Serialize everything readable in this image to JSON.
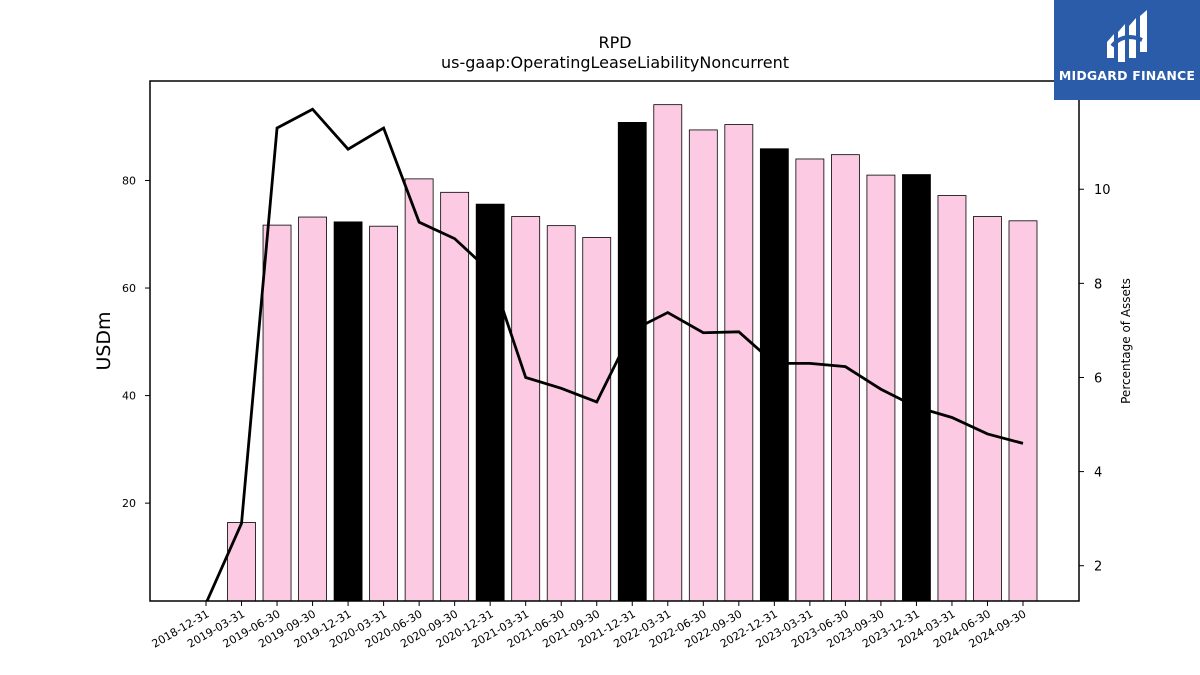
{
  "logo": {
    "text": "MIDGARD FINANCE",
    "background": "#2a5caa"
  },
  "chart_data": {
    "type": "bar",
    "title": "RPD",
    "subtitle": "us-gaap:OperatingLeaseLiabilityNoncurrent",
    "ylabel": "USDm",
    "y2label": "Percentage of Assets",
    "ylim": [
      1.8,
      98.5
    ],
    "y2lim": [
      1.25,
      12.3
    ],
    "yticks": [
      20,
      40,
      60,
      80
    ],
    "y2ticks": [
      2,
      4,
      6,
      8,
      10
    ],
    "colors": {
      "quarter_bar": "#fccbe3",
      "year_end_bar": "#000000",
      "line": "#000000"
    },
    "categories": [
      "2018-12-31",
      "2019-03-31",
      "2019-06-30",
      "2019-09-30",
      "2019-12-31",
      "2020-03-31",
      "2020-06-30",
      "2020-09-30",
      "2020-12-31",
      "2021-03-31",
      "2021-06-30",
      "2021-09-30",
      "2021-12-31",
      "2022-03-31",
      "2022-06-30",
      "2022-09-30",
      "2022-12-31",
      "2023-03-31",
      "2023-06-30",
      "2023-09-30",
      "2023-12-31",
      "2024-03-31",
      "2024-06-30",
      "2024-09-30"
    ],
    "series": [
      {
        "kind": "bar",
        "values": [
          null,
          16.4,
          71.7,
          73.2,
          72.3,
          71.5,
          80.3,
          77.8,
          75.6,
          73.3,
          71.6,
          69.4,
          90.8,
          94.1,
          89.4,
          90.4,
          85.9,
          84.0,
          84.8,
          81.0,
          81.1,
          77.2,
          73.3,
          72.5
        ],
        "year_end": [
          true,
          false,
          false,
          false,
          true,
          false,
          false,
          false,
          true,
          false,
          false,
          false,
          true,
          false,
          false,
          false,
          true,
          false,
          false,
          false,
          true,
          false,
          false,
          false
        ]
      },
      {
        "kind": "line",
        "axis": "right",
        "values": [
          1.2,
          2.9,
          11.3,
          11.7,
          10.85,
          11.3,
          9.3,
          8.95,
          8.25,
          6.0,
          5.77,
          5.48,
          7.0,
          7.38,
          6.95,
          6.97,
          6.3,
          6.3,
          6.23,
          5.75,
          5.37,
          5.15,
          4.8,
          4.6
        ]
      }
    ]
  }
}
